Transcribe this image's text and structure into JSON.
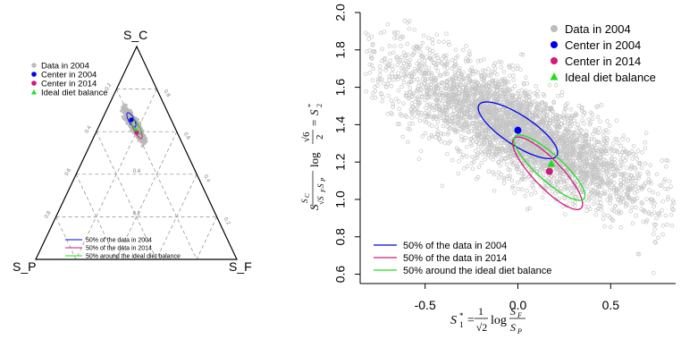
{
  "chart_data": [
    {
      "type": "ternary",
      "vertex_labels": {
        "top": "S_C",
        "left": "S_P",
        "right": "S_F"
      },
      "grid_ticks": [
        "0.2",
        "0.4",
        "0.6",
        "0.8"
      ],
      "legend_points": [
        {
          "label": "Data in 2004",
          "color": "#bdbdbd",
          "marker": "circle"
        },
        {
          "label": "Center in 2004",
          "color": "#0000ee",
          "marker": "circle"
        },
        {
          "label": "Center in 2014",
          "color": "#d4177a",
          "marker": "circle"
        },
        {
          "label": "Ideal diet balance",
          "color": "#22dd22",
          "marker": "triangle"
        }
      ],
      "legend_ellipses": [
        {
          "label": "50% of the data in 2004",
          "color": "#0000ee"
        },
        {
          "label": "50% of the data in 2014",
          "color": "#d4177a"
        },
        {
          "label": "50% around the ideal diet balance",
          "color": "#22dd22"
        }
      ]
    },
    {
      "type": "scatter",
      "legend_position": "top-right",
      "ylabel": "S*_2 = (√6/2) log( S_C / √(S_F S_P) )",
      "xlabel": "S*_1 = (1/√2) log( S_F / S_P )",
      "xlim": [
        -0.85,
        0.85
      ],
      "ylim": [
        0.55,
        2.0
      ],
      "xticks": [
        "-0.5",
        "0.0",
        "0.5"
      ],
      "xtick_values": [
        -0.5,
        0.0,
        0.5
      ],
      "yticks": [
        "0.6",
        "0.8",
        "1.0",
        "1.2",
        "1.4",
        "1.6",
        "1.8",
        "2.0"
      ],
      "ytick_values": [
        0.6,
        0.8,
        1.0,
        1.2,
        1.4,
        1.6,
        1.8,
        2.0
      ],
      "data_2004_cloud": {
        "center": [
          0.0,
          1.37
        ],
        "n": 3600,
        "slope": -0.52,
        "spread_major": 0.46,
        "spread_minor": 0.09
      },
      "centers": [
        {
          "label": "Center in 2004",
          "x": 0.0,
          "y": 1.37,
          "color": "#0000ee",
          "marker": "circle"
        },
        {
          "label": "Center in 2014",
          "x": 0.17,
          "y": 1.15,
          "color": "#d4177a",
          "marker": "circle"
        },
        {
          "label": "Ideal diet balance",
          "x": 0.18,
          "y": 1.19,
          "color": "#22dd22",
          "marker": "triangle"
        }
      ],
      "ellipses": [
        {
          "label": "50% of the data in 2004",
          "color": "#0000ee",
          "cx": 0.0,
          "cy": 1.37,
          "rx": 0.25,
          "ry": 0.08,
          "angle_deg": -33
        },
        {
          "label": "50% of the data in 2014",
          "color": "#d4177a",
          "cx": 0.16,
          "cy": 1.14,
          "rx": 0.26,
          "ry": 0.075,
          "angle_deg": -46
        },
        {
          "label": "50% around the ideal diet balance",
          "color": "#22dd22",
          "cx": 0.17,
          "cy": 1.17,
          "rx": 0.25,
          "ry": 0.07,
          "angle_deg": -42
        }
      ],
      "legend_points": [
        {
          "label": "Data in 2004",
          "color": "#bdbdbd",
          "marker": "circle"
        },
        {
          "label": "Center in 2004",
          "color": "#0000ee",
          "marker": "circle"
        },
        {
          "label": "Center in 2014",
          "color": "#d4177a",
          "marker": "circle"
        },
        {
          "label": "Ideal diet balance",
          "color": "#22dd22",
          "marker": "triangle"
        }
      ],
      "legend_ellipses": [
        {
          "label": "50% of the data in 2004",
          "color": "#0000ee"
        },
        {
          "label": "50% of the data in 2014",
          "color": "#d4177a"
        },
        {
          "label": "50% around the ideal diet balance",
          "color": "#22dd22"
        }
      ]
    }
  ]
}
